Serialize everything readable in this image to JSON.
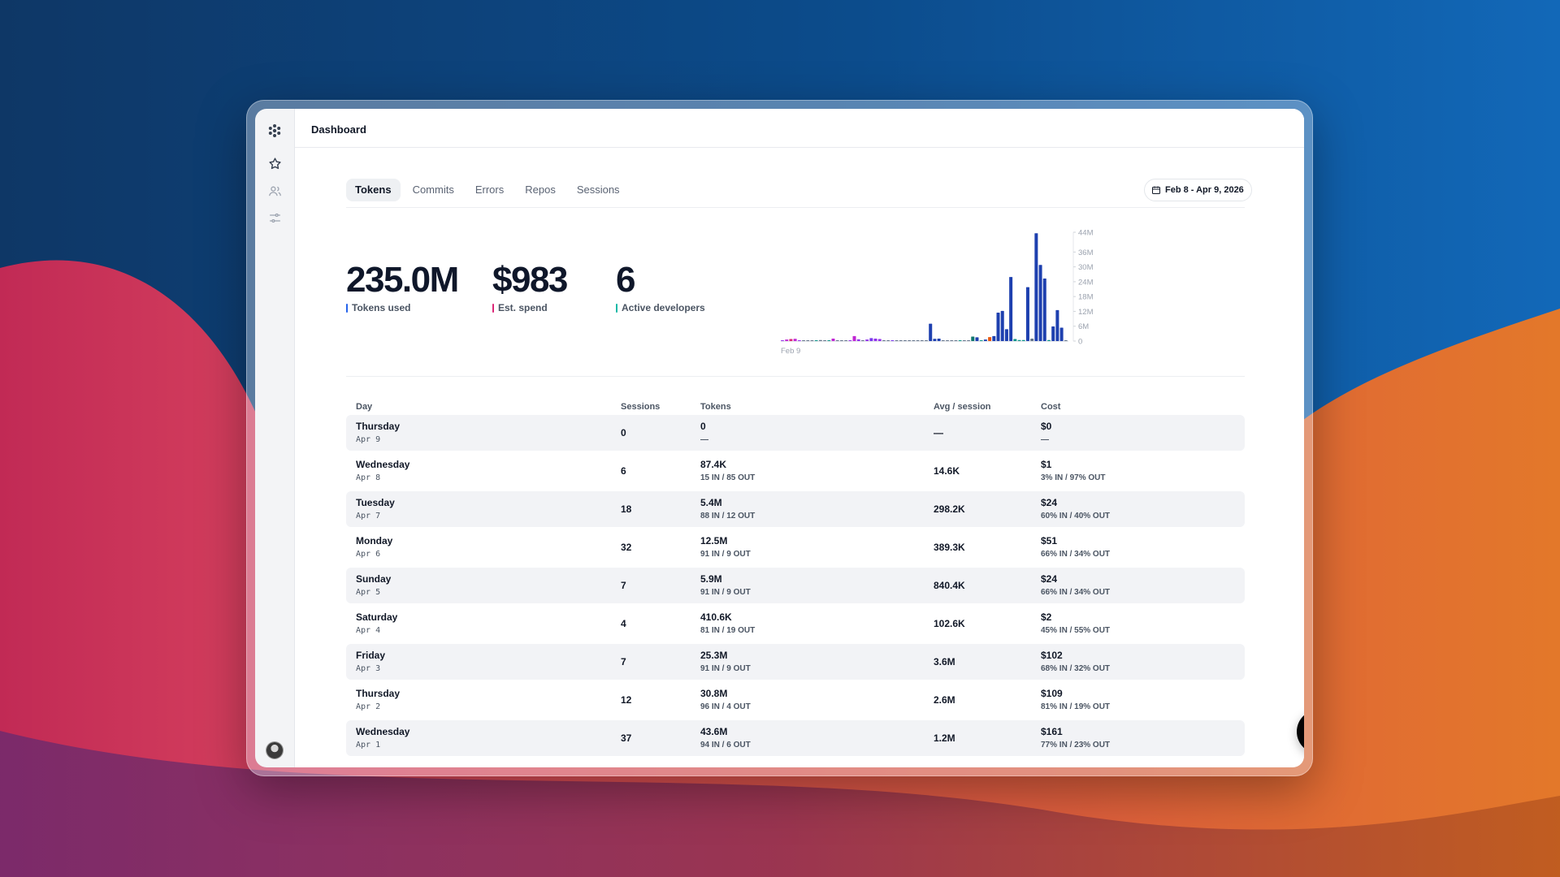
{
  "header": {
    "title": "Dashboard"
  },
  "sidebar": {
    "icons": [
      "logo-icon",
      "star-icon",
      "users-icon",
      "sliders-icon"
    ]
  },
  "tabs": [
    {
      "label": "Tokens",
      "active": true
    },
    {
      "label": "Commits",
      "active": false
    },
    {
      "label": "Errors",
      "active": false
    },
    {
      "label": "Repos",
      "active": false
    },
    {
      "label": "Sessions",
      "active": false
    }
  ],
  "date_range": {
    "label": "Feb 8 - Apr 9, 2026"
  },
  "stats": [
    {
      "value": "235.0M",
      "label": "Tokens used",
      "color": "#2563eb"
    },
    {
      "value": "$983",
      "label": "Est. spend",
      "color": "#db2777"
    },
    {
      "value": "6",
      "label": "Active developers",
      "color": "#14b8a6"
    }
  ],
  "chart_data": {
    "type": "bar",
    "title": "",
    "x_start_label": "Feb 9",
    "y_ticks": [
      "44M",
      "36M",
      "30M",
      "24M",
      "18M",
      "12M",
      "6M",
      "0"
    ],
    "y_tick_values": [
      44,
      36,
      30,
      24,
      18,
      12,
      6,
      0
    ],
    "ylim": [
      0,
      44
    ],
    "unit": "M tokens",
    "values": [
      0.2,
      0.6,
      0.8,
      0.9,
      0.3,
      0.1,
      0.1,
      0.1,
      0.2,
      0.4,
      0.1,
      0.2,
      1.0,
      0.1,
      0.1,
      0.1,
      0.2,
      2.0,
      0.7,
      0.3,
      0.6,
      1.2,
      1.0,
      0.8,
      0.2,
      0.1,
      0.3,
      0.1,
      0.1,
      0.1,
      0.1,
      0.1,
      0.1,
      0.1,
      0.1,
      7.0,
      0.9,
      1.0,
      0.1,
      0.1,
      0.1,
      0.1,
      0.1,
      0.1,
      0.1,
      1.8,
      1.5,
      0.3,
      0.6,
      1.6,
      2.0,
      11.5,
      12.2,
      4.8,
      25.9,
      0.8,
      0.4,
      0.4,
      21.8,
      1.0,
      43.6,
      30.8,
      25.3,
      0.4,
      5.9,
      12.5,
      5.4,
      0.1
    ],
    "colors": [
      "#9333ea",
      "#c026d3",
      "#db2777",
      "#c026d3",
      "#9333ea",
      "#64748b",
      "#64748b",
      "#64748b",
      "#0d9488",
      "#64748b",
      "#64748b",
      "#0d9488",
      "#c026d3",
      "#64748b",
      "#64748b",
      "#64748b",
      "#9333ea",
      "#c026d3",
      "#9333ea",
      "#64748b",
      "#9333ea",
      "#7c3aed",
      "#9333ea",
      "#9333ea",
      "#64748b",
      "#64748b",
      "#7c3aed",
      "#64748b",
      "#64748b",
      "#64748b",
      "#64748b",
      "#64748b",
      "#64748b",
      "#64748b",
      "#64748b",
      "#1e40af",
      "#1e40af",
      "#1e40af",
      "#64748b",
      "#64748b",
      "#64748b",
      "#64748b",
      "#0d9488",
      "#64748b",
      "#64748b",
      "#0f766e",
      "#1e40af",
      "#0d9488",
      "#1e40af",
      "#ea580c",
      "#1e40af",
      "#1e40af",
      "#1e40af",
      "#1e40af",
      "#1e40af",
      "#0d9488",
      "#0d9488",
      "#0d9488",
      "#1e40af",
      "#64748b",
      "#1e40af",
      "#1e40af",
      "#1e40af",
      "#0d9488",
      "#1e40af",
      "#1e40af",
      "#1e40af",
      "#64748b"
    ]
  },
  "table": {
    "columns": [
      "Day",
      "Sessions",
      "Tokens",
      "Avg / session",
      "Cost"
    ],
    "rows": [
      {
        "day": "Thursday",
        "date": "Apr 9",
        "sessions": "0",
        "tokens": "0",
        "tokens_split": "—",
        "avg": "—",
        "cost": "$0",
        "cost_split": "—"
      },
      {
        "day": "Wednesday",
        "date": "Apr 8",
        "sessions": "6",
        "tokens": "87.4K",
        "tokens_split": "15 IN / 85 OUT",
        "avg": "14.6K",
        "cost": "$1",
        "cost_split": "3% IN / 97% OUT"
      },
      {
        "day": "Tuesday",
        "date": "Apr 7",
        "sessions": "18",
        "tokens": "5.4M",
        "tokens_split": "88 IN / 12 OUT",
        "avg": "298.2K",
        "cost": "$24",
        "cost_split": "60% IN / 40% OUT"
      },
      {
        "day": "Monday",
        "date": "Apr 6",
        "sessions": "32",
        "tokens": "12.5M",
        "tokens_split": "91 IN / 9 OUT",
        "avg": "389.3K",
        "cost": "$51",
        "cost_split": "66% IN / 34% OUT"
      },
      {
        "day": "Sunday",
        "date": "Apr 5",
        "sessions": "7",
        "tokens": "5.9M",
        "tokens_split": "91 IN / 9 OUT",
        "avg": "840.4K",
        "cost": "$24",
        "cost_split": "66% IN / 34% OUT"
      },
      {
        "day": "Saturday",
        "date": "Apr 4",
        "sessions": "4",
        "tokens": "410.6K",
        "tokens_split": "81 IN / 19 OUT",
        "avg": "102.6K",
        "cost": "$2",
        "cost_split": "45% IN / 55% OUT"
      },
      {
        "day": "Friday",
        "date": "Apr 3",
        "sessions": "7",
        "tokens": "25.3M",
        "tokens_split": "91 IN / 9 OUT",
        "avg": "3.6M",
        "cost": "$102",
        "cost_split": "68% IN / 32% OUT"
      },
      {
        "day": "Thursday",
        "date": "Apr 2",
        "sessions": "12",
        "tokens": "30.8M",
        "tokens_split": "96 IN / 4 OUT",
        "avg": "2.6M",
        "cost": "$109",
        "cost_split": "81% IN / 19% OUT"
      },
      {
        "day": "Wednesday",
        "date": "Apr 1",
        "sessions": "37",
        "tokens": "43.6M",
        "tokens_split": "94 IN / 6 OUT",
        "avg": "1.2M",
        "cost": "$161",
        "cost_split": "77% IN / 23% OUT"
      }
    ]
  }
}
